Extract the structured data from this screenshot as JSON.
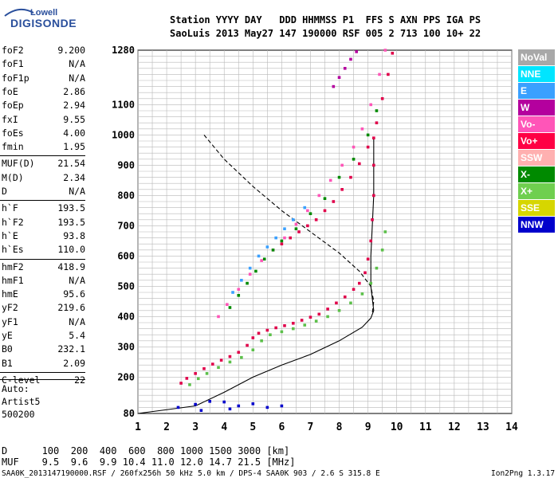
{
  "logo": {
    "brand": "Lowell",
    "product": "DIGISONDE"
  },
  "header": {
    "line1": "Station YYYY DAY   DDD HHMMSS P1  FFS S AXN PPS IGA PS",
    "line2": "SaoLuis 2013 May27 147 190000 RSF 005 2 713 100 10+ 22"
  },
  "params": [
    {
      "name": "foF2",
      "value": "9.200"
    },
    {
      "name": "foF1",
      "value": "N/A"
    },
    {
      "name": "foF1p",
      "value": "N/A"
    },
    {
      "name": "foE",
      "value": "2.86"
    },
    {
      "name": "foEp",
      "value": "2.94"
    },
    {
      "name": "fxI",
      "value": "9.55"
    },
    {
      "name": "foEs",
      "value": "4.00"
    },
    {
      "name": "fmin",
      "value": "1.95"
    },
    {
      "name": "MUF(D)",
      "value": "21.54"
    },
    {
      "name": "M(D)",
      "value": "2.34"
    },
    {
      "name": "D",
      "value": "N/A"
    },
    {
      "name": "h`F",
      "value": "193.5"
    },
    {
      "name": "h`F2",
      "value": "193.5"
    },
    {
      "name": "h`E",
      "value": "93.8"
    },
    {
      "name": "h`Es",
      "value": "110.0"
    },
    {
      "name": "hmF2",
      "value": "418.9"
    },
    {
      "name": "hmF1",
      "value": "N/A"
    },
    {
      "name": "hmE",
      "value": "95.6"
    },
    {
      "name": "yF2",
      "value": "219.6"
    },
    {
      "name": "yF1",
      "value": "N/A"
    },
    {
      "name": "yE",
      "value": "5.4"
    },
    {
      "name": "B0",
      "value": "232.1"
    },
    {
      "name": "B1",
      "value": "2.09"
    },
    {
      "name": "C-level",
      "value": "22"
    }
  ],
  "auto": [
    "Auto:",
    "Artist5",
    "500200"
  ],
  "legend": [
    {
      "label": "NoVal",
      "color": "#a8a8a8"
    },
    {
      "label": "NNE",
      "color": "#00e5ff"
    },
    {
      "label": "E",
      "color": "#3aa0ff"
    },
    {
      "label": "W",
      "color": "#b4009e"
    },
    {
      "label": "Vo-",
      "color": "#ff55b8"
    },
    {
      "label": "Vo+",
      "color": "#ff0044"
    },
    {
      "label": "SSW",
      "color": "#ffb0b0"
    },
    {
      "label": "X-",
      "color": "#008a00"
    },
    {
      "label": "X+",
      "color": "#6fcf4f"
    },
    {
      "label": "SSE",
      "color": "#d6d600"
    },
    {
      "label": "NNW",
      "color": "#0000cc"
    }
  ],
  "distance_table": {
    "row1": "D      100  200  400  600  800 1000 1500 3000 [km]",
    "row2": "MUF    9.5  9.6  9.9 10.4 11.0 12.0 14.7 21.5 [MHz]"
  },
  "footer": {
    "left": "SAA0K_2013147190000.RSF / 260fx256h 50 kHz 5.0 km / DPS-4 SAA0K 903 / 2.6 S 315.8 E",
    "right": "Ion2Png 1.3.17"
  },
  "chart_data": {
    "type": "scatter",
    "xlim": [
      1,
      14
    ],
    "ylim": [
      80,
      1280
    ],
    "x_ticks": [
      1,
      2,
      3,
      4,
      5,
      6,
      7,
      8,
      9,
      10,
      11,
      12,
      13,
      14
    ],
    "y_ticks": [
      80,
      200,
      300,
      400,
      500,
      600,
      700,
      800,
      900,
      1000,
      1100,
      1280
    ],
    "grid": true,
    "series": [
      {
        "name": "Vo+",
        "color": "#e0004a",
        "points": [
          [
            2.5,
            180
          ],
          [
            2.7,
            196
          ],
          [
            3.0,
            212
          ],
          [
            3.3,
            228
          ],
          [
            3.6,
            243
          ],
          [
            3.9,
            256
          ],
          [
            4.2,
            268
          ],
          [
            4.5,
            282
          ],
          [
            4.8,
            305
          ],
          [
            5.0,
            330
          ],
          [
            5.2,
            345
          ],
          [
            5.5,
            355
          ],
          [
            5.8,
            363
          ],
          [
            6.1,
            370
          ],
          [
            6.4,
            378
          ],
          [
            6.7,
            388
          ],
          [
            7.0,
            398
          ],
          [
            7.3,
            408
          ],
          [
            7.6,
            425
          ],
          [
            7.9,
            445
          ],
          [
            8.2,
            465
          ],
          [
            8.5,
            490
          ],
          [
            8.7,
            510
          ],
          [
            8.9,
            545
          ],
          [
            9.0,
            590
          ],
          [
            9.1,
            650
          ],
          [
            9.15,
            720
          ],
          [
            9.2,
            800
          ],
          [
            9.2,
            900
          ],
          [
            9.2,
            990
          ]
        ]
      },
      {
        "name": "X+",
        "color": "#5cc04a",
        "points": [
          [
            2.8,
            175
          ],
          [
            3.1,
            195
          ],
          [
            3.4,
            212
          ],
          [
            3.8,
            232
          ],
          [
            4.2,
            250
          ],
          [
            4.6,
            265
          ],
          [
            5.0,
            290
          ],
          [
            5.3,
            320
          ],
          [
            5.6,
            340
          ],
          [
            6.0,
            350
          ],
          [
            6.4,
            360
          ],
          [
            6.8,
            372
          ],
          [
            7.2,
            385
          ],
          [
            7.6,
            400
          ],
          [
            8.0,
            420
          ],
          [
            8.4,
            445
          ],
          [
            8.8,
            475
          ],
          [
            9.1,
            510
          ],
          [
            9.3,
            560
          ],
          [
            9.5,
            620
          ],
          [
            9.6,
            680
          ]
        ]
      },
      {
        "name": "Vo+",
        "color": "#e0004a",
        "points": [
          [
            6.0,
            640
          ],
          [
            6.3,
            660
          ],
          [
            6.6,
            680
          ],
          [
            6.9,
            700
          ],
          [
            7.2,
            720
          ],
          [
            7.5,
            750
          ],
          [
            7.8,
            780
          ],
          [
            8.1,
            820
          ],
          [
            8.4,
            860
          ],
          [
            8.7,
            905
          ],
          [
            9.0,
            960
          ],
          [
            9.3,
            1040
          ],
          [
            9.5,
            1120
          ],
          [
            9.7,
            1200
          ],
          [
            9.85,
            1270
          ]
        ]
      },
      {
        "name": "Vo-",
        "color": "#ff55b8",
        "points": [
          [
            3.8,
            400
          ],
          [
            4.1,
            440
          ],
          [
            4.5,
            490
          ],
          [
            4.9,
            540
          ],
          [
            5.3,
            585
          ],
          [
            5.7,
            620
          ],
          [
            6.1,
            660
          ],
          [
            6.5,
            705
          ],
          [
            6.9,
            750
          ],
          [
            7.3,
            800
          ],
          [
            7.7,
            850
          ],
          [
            8.1,
            900
          ],
          [
            8.5,
            960
          ],
          [
            8.8,
            1020
          ],
          [
            9.1,
            1100
          ],
          [
            9.4,
            1200
          ],
          [
            9.6,
            1280
          ]
        ]
      },
      {
        "name": "X-",
        "color": "#008a00",
        "points": [
          [
            4.2,
            430
          ],
          [
            4.5,
            470
          ],
          [
            4.8,
            510
          ],
          [
            5.1,
            550
          ],
          [
            5.4,
            590
          ],
          [
            5.7,
            620
          ],
          [
            6.0,
            650
          ],
          [
            6.5,
            690
          ],
          [
            7.0,
            740
          ],
          [
            7.5,
            790
          ],
          [
            8.0,
            860
          ],
          [
            8.5,
            920
          ],
          [
            9.0,
            1000
          ],
          [
            9.3,
            1080
          ]
        ]
      },
      {
        "name": "E",
        "color": "#3aa0ff",
        "points": [
          [
            4.3,
            480
          ],
          [
            4.6,
            520
          ],
          [
            4.9,
            560
          ],
          [
            5.2,
            600
          ],
          [
            5.5,
            630
          ],
          [
            5.8,
            660
          ],
          [
            6.1,
            690
          ],
          [
            6.4,
            720
          ],
          [
            6.8,
            760
          ]
        ]
      },
      {
        "name": "W",
        "color": "#b4009e",
        "points": [
          [
            7.8,
            1160
          ],
          [
            8.0,
            1190
          ],
          [
            8.2,
            1220
          ],
          [
            8.4,
            1250
          ],
          [
            8.6,
            1275
          ]
        ]
      },
      {
        "name": "NNW",
        "color": "#0000cc",
        "points": [
          [
            2.4,
            100
          ],
          [
            3.0,
            110
          ],
          [
            3.5,
            120
          ],
          [
            4.0,
            118
          ],
          [
            4.5,
            105
          ],
          [
            5.0,
            112
          ],
          [
            5.5,
            100
          ],
          [
            6.0,
            105
          ],
          [
            3.2,
            90
          ],
          [
            4.2,
            95
          ]
        ]
      }
    ],
    "profile_line": [
      [
        1,
        80
      ],
      [
        3,
        105
      ],
      [
        4,
        150
      ],
      [
        5,
        200
      ],
      [
        6,
        240
      ],
      [
        7,
        275
      ],
      [
        8,
        320
      ],
      [
        8.8,
        365
      ],
      [
        9.1,
        395
      ],
      [
        9.2,
        420
      ],
      [
        9.15,
        460
      ],
      [
        9.1,
        500
      ],
      [
        9.1,
        600
      ],
      [
        9.15,
        700
      ],
      [
        9.2,
        800
      ],
      [
        9.2,
        900
      ],
      [
        9.2,
        990
      ]
    ],
    "dashed_line": [
      [
        3.3,
        1000
      ],
      [
        4.0,
        920
      ],
      [
        5.0,
        830
      ],
      [
        6.0,
        750
      ],
      [
        7.0,
        680
      ],
      [
        8.0,
        610
      ],
      [
        8.7,
        550
      ],
      [
        9.1,
        500
      ],
      [
        9.2,
        450
      ],
      [
        9.15,
        410
      ]
    ]
  }
}
